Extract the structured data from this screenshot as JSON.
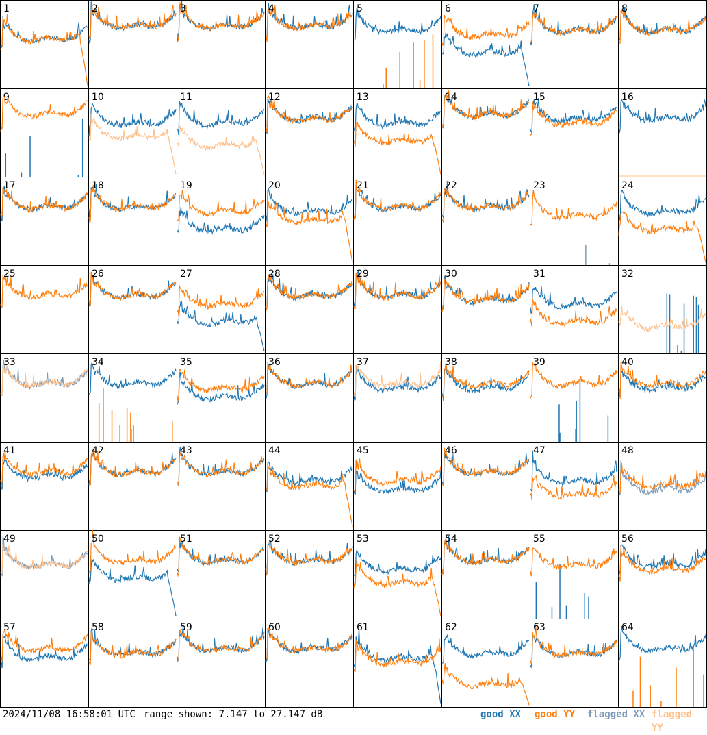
{
  "footer": {
    "timestamp": "2024/11/08 16:58:01 UTC",
    "range_text": "range shown: 7.147 to 27.147 dB"
  },
  "legend": {
    "good_xx": "good XX",
    "good_yy": "good YY",
    "flagged_xx": "flagged XX",
    "flagged_yy": "flagged YY"
  },
  "colors": {
    "good_xx": "#1f77b4",
    "good_yy": "#ff7f0e",
    "flagged_xx": "#7f9db9",
    "flagged_yy": "#ffc08a",
    "grid": "#000000"
  },
  "chart_data": {
    "type": "line",
    "layout": "8x8 small multiples",
    "x": "channel",
    "ylim": [
      7.147,
      27.147
    ],
    "yunit": "dB",
    "panels": [
      {
        "id": 1,
        "xx": "good",
        "yy": "good",
        "xx_level": 0.55,
        "yy_level": 0.55,
        "yy_rolloff": true
      },
      {
        "id": 2,
        "xx": "good",
        "yy": "good",
        "xx_level": 0.7,
        "yy_level": 0.7
      },
      {
        "id": 3,
        "xx": "good",
        "yy": "good",
        "xx_level": 0.7,
        "yy_level": 0.7
      },
      {
        "id": 4,
        "xx": "good",
        "yy": "good",
        "xx_level": 0.7,
        "yy_level": 0.7
      },
      {
        "id": 5,
        "xx": "good",
        "yy": "spikes",
        "xx_level": 0.65,
        "yy_level": 0.0
      },
      {
        "id": 6,
        "xx": "good",
        "yy": "good",
        "xx_level": 0.4,
        "yy_level": 0.6,
        "xx_rolloff": true
      },
      {
        "id": 7,
        "xx": "good",
        "yy": "good",
        "xx_level": 0.65,
        "yy_level": 0.65
      },
      {
        "id": 8,
        "xx": "good",
        "yy": "good",
        "xx_level": 0.65,
        "yy_level": 0.65
      },
      {
        "id": 9,
        "xx": "spikes",
        "yy": "good",
        "xx_level": 0.0,
        "yy_level": 0.7
      },
      {
        "id": 10,
        "xx": "good",
        "yy": "flagged",
        "xx_level": 0.6,
        "yy_level": 0.45,
        "yy_rolloff": true
      },
      {
        "id": 11,
        "xx": "good",
        "yy": "flagged",
        "xx_level": 0.6,
        "yy_level": 0.35,
        "yy_rolloff": true
      },
      {
        "id": 12,
        "xx": "good",
        "yy": "good",
        "xx_level": 0.65,
        "yy_level": 0.65
      },
      {
        "id": 13,
        "xx": "good",
        "yy": "good",
        "xx_level": 0.6,
        "yy_level": 0.4,
        "yy_rolloff": true
      },
      {
        "id": 14,
        "xx": "good",
        "yy": "good",
        "xx_level": 0.7,
        "yy_level": 0.7
      },
      {
        "id": 15,
        "xx": "good",
        "yy": "good",
        "xx_level": 0.65,
        "yy_level": 0.6
      },
      {
        "id": 16,
        "xx": "good",
        "yy": "flat",
        "xx_level": 0.65,
        "yy_level": 0.0
      },
      {
        "id": 17,
        "xx": "good",
        "yy": "good",
        "xx_level": 0.65,
        "yy_level": 0.65
      },
      {
        "id": 18,
        "xx": "good",
        "yy": "good",
        "xx_level": 0.65,
        "yy_level": 0.65
      },
      {
        "id": 19,
        "xx": "good",
        "yy": "good",
        "xx_level": 0.4,
        "yy_level": 0.6
      },
      {
        "id": 20,
        "xx": "good",
        "yy": "good",
        "xx_level": 0.6,
        "yy_level": 0.5,
        "yy_rolloff": true
      },
      {
        "id": 21,
        "xx": "good",
        "yy": "good",
        "xx_level": 0.65,
        "yy_level": 0.65
      },
      {
        "id": 22,
        "xx": "good",
        "yy": "good",
        "xx_level": 0.65,
        "yy_level": 0.65
      },
      {
        "id": 23,
        "xx": "flagged_spikes",
        "yy": "good",
        "xx_level": 0.08,
        "yy_level": 0.55
      },
      {
        "id": 24,
        "xx": "good",
        "yy": "good",
        "xx_level": 0.6,
        "yy_level": 0.4,
        "yy_rolloff": true
      },
      {
        "id": 25,
        "xx": "faint",
        "yy": "good",
        "xx_level": 0.0,
        "yy_level": 0.65
      },
      {
        "id": 26,
        "xx": "good",
        "yy": "good",
        "xx_level": 0.65,
        "yy_level": 0.65
      },
      {
        "id": 27,
        "xx": "good",
        "yy": "good",
        "xx_level": 0.35,
        "yy_level": 0.55,
        "xx_rolloff": true
      },
      {
        "id": 28,
        "xx": "good",
        "yy": "good",
        "xx_level": 0.65,
        "yy_level": 0.65
      },
      {
        "id": 29,
        "xx": "good",
        "yy": "good",
        "xx_level": 0.65,
        "yy_level": 0.65
      },
      {
        "id": 30,
        "xx": "good",
        "yy": "good",
        "xx_level": 0.6,
        "yy_level": 0.6
      },
      {
        "id": 31,
        "xx": "good",
        "yy": "good",
        "xx_level": 0.55,
        "yy_level": 0.35
      },
      {
        "id": 32,
        "xx": "spikes",
        "yy": "flagged",
        "xx_level": 0.0,
        "yy_level": 0.3
      },
      {
        "id": 33,
        "xx": "flagged",
        "yy": "flagged",
        "xx_level": 0.65,
        "yy_level": 0.65
      },
      {
        "id": 34,
        "xx": "good",
        "yy": "spikes",
        "xx_level": 0.65,
        "yy_level": 0.0
      },
      {
        "id": 35,
        "xx": "good",
        "yy": "good",
        "xx_level": 0.5,
        "yy_level": 0.6
      },
      {
        "id": 36,
        "xx": "good",
        "yy": "good",
        "xx_level": 0.65,
        "yy_level": 0.65
      },
      {
        "id": 37,
        "xx": "good",
        "yy": "flagged",
        "xx_level": 0.6,
        "yy_level": 0.65
      },
      {
        "id": 38,
        "xx": "good",
        "yy": "good",
        "xx_level": 0.6,
        "yy_level": 0.65
      },
      {
        "id": 39,
        "xx": "spikes",
        "yy": "good",
        "xx_level": 0.0,
        "yy_level": 0.65
      },
      {
        "id": 40,
        "xx": "good",
        "yy": "good",
        "xx_level": 0.6,
        "yy_level": 0.65
      },
      {
        "id": 41,
        "xx": "good",
        "yy": "good",
        "xx_level": 0.6,
        "yy_level": 0.65
      },
      {
        "id": 42,
        "xx": "good",
        "yy": "good",
        "xx_level": 0.65,
        "yy_level": 0.65
      },
      {
        "id": 43,
        "xx": "good",
        "yy": "good",
        "xx_level": 0.65,
        "yy_level": 0.65
      },
      {
        "id": 44,
        "xx": "good",
        "yy": "good",
        "xx_level": 0.55,
        "yy_level": 0.5,
        "yy_rolloff": true
      },
      {
        "id": 45,
        "xx": "good",
        "yy": "good",
        "xx_level": 0.45,
        "yy_level": 0.55
      },
      {
        "id": 46,
        "xx": "good",
        "yy": "good",
        "xx_level": 0.65,
        "yy_level": 0.65
      },
      {
        "id": 47,
        "xx": "good",
        "yy": "good",
        "xx_level": 0.55,
        "yy_level": 0.4
      },
      {
        "id": 48,
        "xx": "flagged",
        "yy": "good",
        "xx_level": 0.45,
        "yy_level": 0.5
      },
      {
        "id": 49,
        "xx": "flagged",
        "yy": "flagged",
        "xx_level": 0.6,
        "yy_level": 0.6
      },
      {
        "id": 50,
        "xx": "good",
        "yy": "good",
        "xx_level": 0.45,
        "yy_level": 0.65,
        "xx_rolloff": true
      },
      {
        "id": 51,
        "xx": "good",
        "yy": "good",
        "xx_level": 0.65,
        "yy_level": 0.65
      },
      {
        "id": 52,
        "xx": "good",
        "yy": "good",
        "xx_level": 0.65,
        "yy_level": 0.65
      },
      {
        "id": 53,
        "xx": "good",
        "yy": "good",
        "xx_level": 0.55,
        "yy_level": 0.4,
        "yy_rolloff": true
      },
      {
        "id": 54,
        "xx": "good",
        "yy": "good",
        "xx_level": 0.65,
        "yy_level": 0.65
      },
      {
        "id": 55,
        "xx": "spikes",
        "yy": "good",
        "xx_level": 0.0,
        "yy_level": 0.6
      },
      {
        "id": 56,
        "xx": "good",
        "yy": "good",
        "xx_level": 0.6,
        "yy_level": 0.55
      },
      {
        "id": 57,
        "xx": "good",
        "yy": "good",
        "xx_level": 0.55,
        "yy_level": 0.65
      },
      {
        "id": 58,
        "xx": "good",
        "yy": "good",
        "xx_level": 0.6,
        "yy_level": 0.6
      },
      {
        "id": 59,
        "xx": "good",
        "yy": "good",
        "xx_level": 0.65,
        "yy_level": 0.65
      },
      {
        "id": 60,
        "xx": "good",
        "yy": "good",
        "xx_level": 0.65,
        "yy_level": 0.65
      },
      {
        "id": 61,
        "xx": "good",
        "yy": "good",
        "xx_level": 0.55,
        "yy_level": 0.5,
        "xx_rolloff": true
      },
      {
        "id": 62,
        "xx": "good",
        "yy": "good",
        "xx_level": 0.6,
        "yy_level": 0.25,
        "yy_rolloff": true
      },
      {
        "id": 63,
        "xx": "good",
        "yy": "good",
        "xx_level": 0.6,
        "yy_level": 0.6
      },
      {
        "id": 64,
        "xx": "good",
        "yy": "spikes",
        "xx_level": 0.65,
        "yy_level": 0.0
      }
    ]
  }
}
